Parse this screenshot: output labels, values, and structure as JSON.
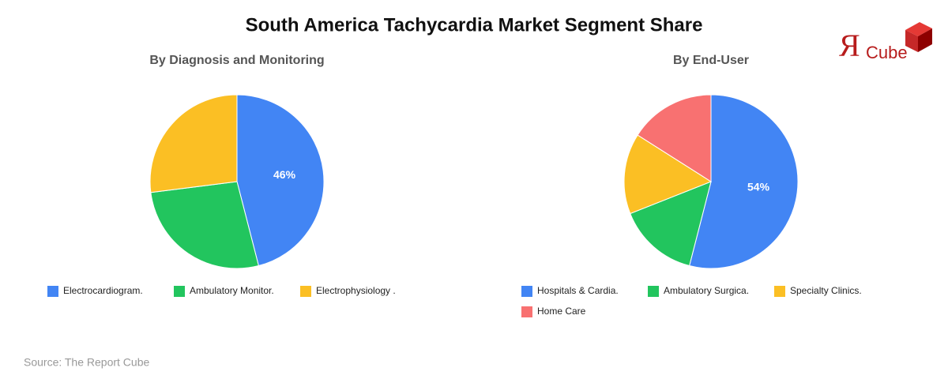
{
  "title": "South America Tachycardia Market Segment Share",
  "source": "Source: The Report Cube",
  "logo": [
    "Я",
    "Cube"
  ],
  "chart_data": [
    {
      "type": "pie",
      "title": "By Diagnosis and Monitoring",
      "categories": [
        "Electrocardiogram.",
        "Ambulatory Monitor.",
        "Electrophysiology ."
      ],
      "values": [
        46,
        27,
        27
      ],
      "value_labels": [
        "46%",
        null,
        null
      ],
      "colors": [
        "#4285f4",
        "#22c55e",
        "#fbbf24"
      ]
    },
    {
      "type": "pie",
      "title": "By End-User",
      "categories": [
        "Hospitals & Cardia.",
        "Ambulatory Surgica.",
        "Specialty Clinics.",
        "Home Care"
      ],
      "values": [
        54,
        15,
        15,
        16
      ],
      "value_labels": [
        "54%",
        null,
        null,
        null
      ],
      "colors": [
        "#4285f4",
        "#22c55e",
        "#fbbf24",
        "#f87171"
      ]
    }
  ]
}
